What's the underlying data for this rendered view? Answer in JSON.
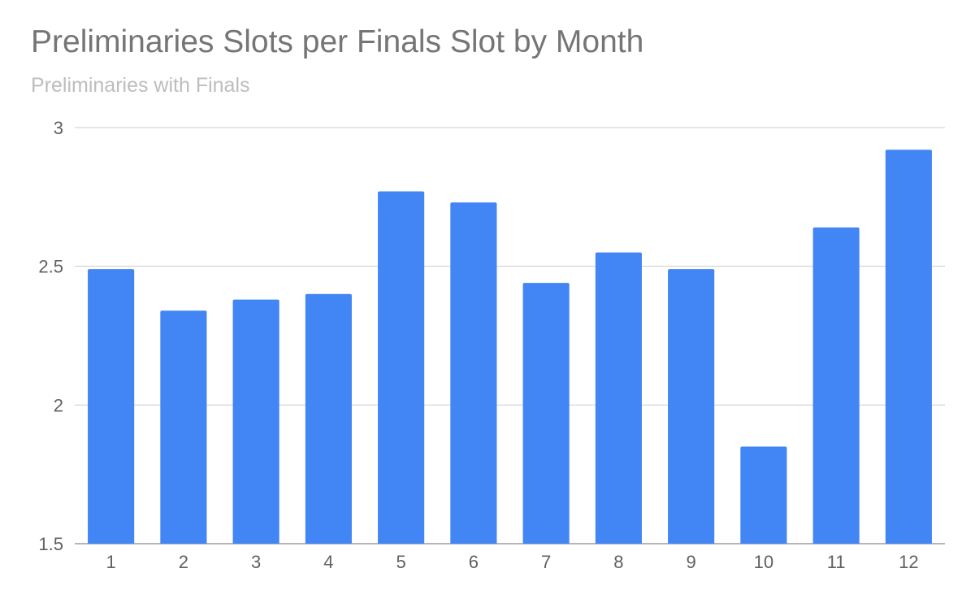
{
  "chart_data": {
    "type": "bar",
    "title": "Preliminaries Slots per Finals Slot by Month",
    "subtitle": "Preliminaries with Finals",
    "xlabel": "",
    "ylabel": "",
    "categories": [
      "1",
      "2",
      "3",
      "4",
      "5",
      "6",
      "7",
      "8",
      "9",
      "10",
      "11",
      "12"
    ],
    "series": [
      {
        "values": [
          2.49,
          2.34,
          2.38,
          2.4,
          2.77,
          2.73,
          2.44,
          2.55,
          2.49,
          1.85,
          2.64,
          2.92
        ]
      }
    ],
    "ylim": [
      1.5,
      3
    ],
    "yticks": [
      "1.5",
      "2",
      "2.5",
      "3"
    ],
    "grid": true,
    "colors": {
      "bar": "#4285f4",
      "grid": "#cccccc",
      "axis": "#9e9e9e"
    }
  }
}
